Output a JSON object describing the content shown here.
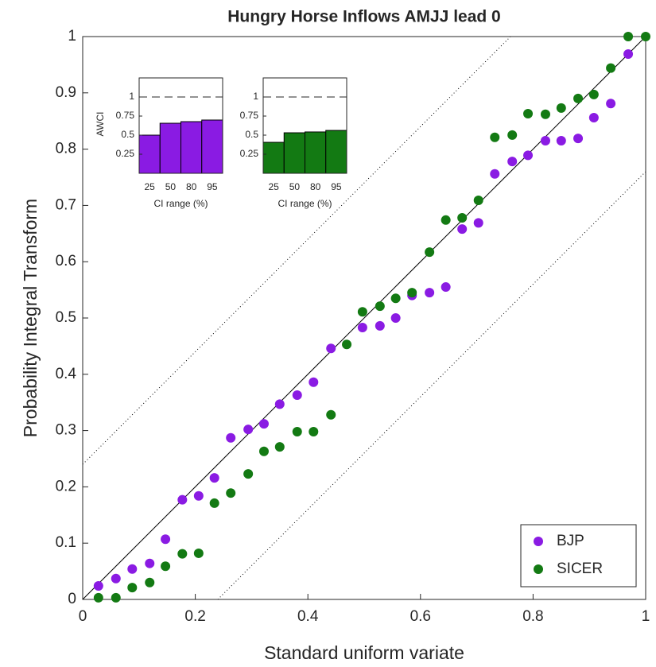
{
  "chart_data": [
    {
      "type": "scatter",
      "title": "Hungry Horse Inflows AMJJ lead 0",
      "xlabel": "Standard uniform variate",
      "ylabel": "Probability Integral Transform",
      "xlim": [
        0,
        1
      ],
      "ylim": [
        0,
        1
      ],
      "xticks": [
        0,
        0.2,
        0.4,
        0.6,
        0.8,
        1
      ],
      "yticks": [
        0,
        0.1,
        0.2,
        0.3,
        0.4,
        0.5,
        0.6,
        0.7,
        0.8,
        0.9,
        1
      ],
      "ks_band": 0.24,
      "legend": "lower right",
      "series": [
        {
          "name": "BJP",
          "color": "#8a1be3",
          "x": [
            0.028,
            0.059,
            0.088,
            0.119,
            0.147,
            0.177,
            0.206,
            0.234,
            0.263,
            0.294,
            0.322,
            0.35,
            0.381,
            0.41,
            0.441,
            0.497,
            0.528,
            0.556,
            0.585,
            0.616,
            0.645,
            0.674,
            0.703,
            0.732,
            0.763,
            0.791,
            0.822,
            0.85,
            0.88,
            0.908,
            0.938,
            0.969
          ],
          "values": [
            0.024,
            0.037,
            0.054,
            0.064,
            0.107,
            0.177,
            0.184,
            0.216,
            0.287,
            0.302,
            0.312,
            0.347,
            0.363,
            0.386,
            0.446,
            0.483,
            0.486,
            0.5,
            0.54,
            0.545,
            0.555,
            0.658,
            0.669,
            0.756,
            0.778,
            0.789,
            0.815,
            0.815,
            0.819,
            0.856,
            0.881,
            0.969
          ]
        },
        {
          "name": "SICER",
          "color": "#137a13",
          "x": [
            0.028,
            0.059,
            0.088,
            0.119,
            0.147,
            0.177,
            0.206,
            0.234,
            0.263,
            0.294,
            0.322,
            0.35,
            0.381,
            0.41,
            0.441,
            0.469,
            0.497,
            0.528,
            0.556,
            0.585,
            0.616,
            0.645,
            0.674,
            0.703,
            0.732,
            0.763,
            0.791,
            0.822,
            0.85,
            0.88,
            0.908,
            0.938,
            0.969,
            1
          ],
          "values": [
            0.003,
            0.003,
            0.021,
            0.03,
            0.059,
            0.081,
            0.082,
            0.171,
            0.189,
            0.223,
            0.263,
            0.271,
            0.298,
            0.298,
            0.328,
            0.453,
            0.511,
            0.521,
            0.535,
            0.545,
            0.617,
            0.674,
            0.678,
            0.709,
            0.821,
            0.825,
            0.863,
            0.862,
            0.873,
            0.89,
            0.897,
            0.944,
            1,
            1
          ]
        }
      ]
    },
    {
      "type": "bar",
      "xlabel": "CI range (%)",
      "ylabel": "AWCI",
      "categories": [
        "25",
        "50",
        "80",
        "95"
      ],
      "values": [
        0.5,
        0.656,
        0.677,
        0.698
      ],
      "color": "#8a1be3",
      "ylim": [
        0,
        1.25
      ],
      "yticks": [
        0.25,
        0.5,
        0.75,
        1
      ],
      "reference_line": 1
    },
    {
      "type": "bar",
      "xlabel": "CI range (%)",
      "categories": [
        "25",
        "50",
        "80",
        "95"
      ],
      "values": [
        0.406,
        0.531,
        0.542,
        0.562
      ],
      "color": "#137a13",
      "ylim": [
        0,
        1.25
      ],
      "yticks": [
        0.25,
        0.5,
        0.75,
        1
      ],
      "reference_line": 1
    }
  ]
}
